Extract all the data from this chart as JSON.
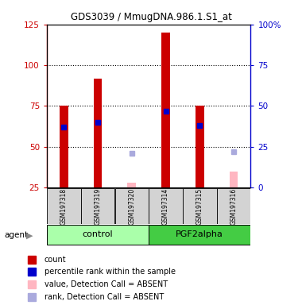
{
  "title": "GDS3039 / MmugDNA.986.1.S1_at",
  "samples": [
    "GSM197318",
    "GSM197319",
    "GSM197320",
    "GSM197314",
    "GSM197315",
    "GSM197316"
  ],
  "red_bars": [
    75,
    92,
    null,
    120,
    75,
    null
  ],
  "blue_squares": [
    62,
    65,
    null,
    72,
    63,
    null
  ],
  "pink_bars": [
    null,
    null,
    28,
    null,
    null,
    35
  ],
  "lavender_squares": [
    null,
    null,
    46,
    null,
    null,
    47
  ],
  "ylim_left": [
    25,
    125
  ],
  "ylim_right": [
    0,
    100
  ],
  "yticks_left": [
    25,
    50,
    75,
    100,
    125
  ],
  "yticks_right": [
    0,
    25,
    50,
    75,
    100
  ],
  "ytick_labels_right": [
    "0",
    "25",
    "50",
    "75",
    "100%"
  ],
  "dotted_lines": [
    50,
    75,
    100
  ],
  "left_axis_color": "#cc0000",
  "right_axis_color": "#0000cc",
  "red_bar_color": "#cc0000",
  "blue_sq_color": "#0000cc",
  "pink_bar_color": "#ffb6c1",
  "lavender_sq_color": "#aaaadd",
  "bar_width": 0.25,
  "legend_items": [
    {
      "label": "count",
      "color": "#cc0000"
    },
    {
      "label": "percentile rank within the sample",
      "color": "#0000cc"
    },
    {
      "label": "value, Detection Call = ABSENT",
      "color": "#ffb6c1"
    },
    {
      "label": "rank, Detection Call = ABSENT",
      "color": "#aaaadd"
    }
  ],
  "control_color": "#aaffaa",
  "pgf_color": "#44cc44",
  "label_bg": "#d3d3d3"
}
